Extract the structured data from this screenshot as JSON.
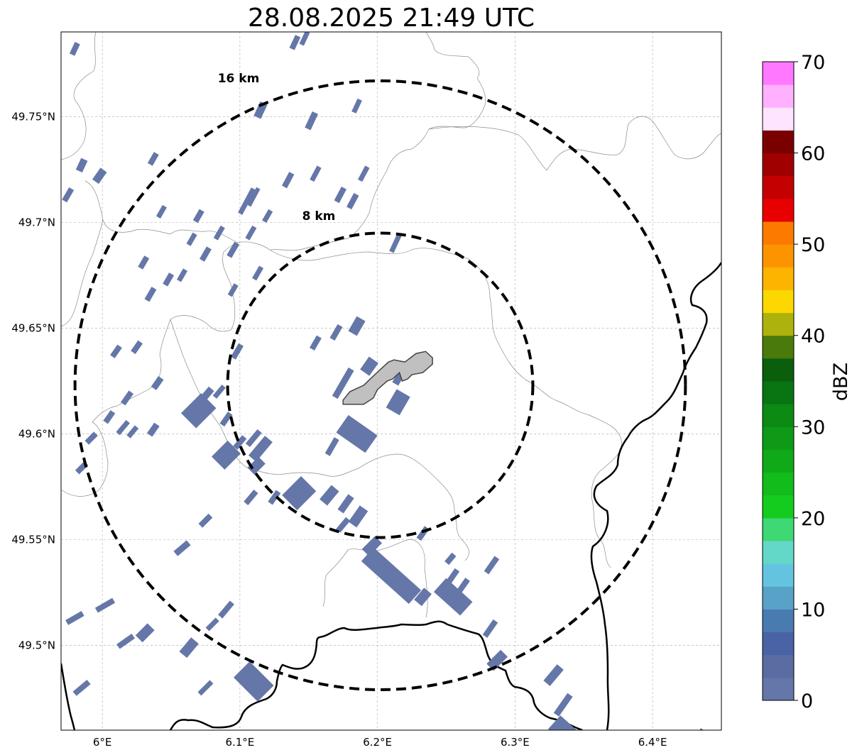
{
  "title": "28.08.2025 21:49 UTC",
  "map": {
    "lon_range": [
      5.97,
      6.45
    ],
    "lat_range": [
      49.46,
      49.79
    ],
    "x_ticks": [
      {
        "value": 6.0,
        "label": "6°E"
      },
      {
        "value": 6.1,
        "label": "6.1°E"
      },
      {
        "value": 6.2,
        "label": "6.2°E"
      },
      {
        "value": 6.3,
        "label": "6.3°E"
      },
      {
        "value": 6.4,
        "label": "6.4°E"
      }
    ],
    "y_ticks": [
      {
        "value": 49.5,
        "label": "49.5°N"
      },
      {
        "value": 49.55,
        "label": "49.55°N"
      },
      {
        "value": 49.6,
        "label": "49.6°N"
      },
      {
        "value": 49.65,
        "label": "49.65°N"
      },
      {
        "value": 49.7,
        "label": "49.7°N"
      },
      {
        "value": 49.75,
        "label": "49.75°N"
      }
    ],
    "gridlines": true,
    "center": {
      "lon": 6.202,
      "lat": 49.623
    },
    "rings": [
      {
        "radius_km": 8,
        "label": "8 km"
      },
      {
        "radius_km": 16,
        "label": "16 km"
      }
    ],
    "echo_color": "#6577a8",
    "echo_value_dbz": "0-5",
    "city_fill": "#c0c0c0"
  },
  "colorbar": {
    "label": "dBZ",
    "vmin": 0,
    "vmax": 70,
    "ticks": [
      0,
      10,
      20,
      30,
      40,
      50,
      60,
      70
    ],
    "colors": [
      "#6577a8",
      "#5a6ca2",
      "#4a63a6",
      "#4a7bb0",
      "#58a2c8",
      "#64c4e0",
      "#64d8c8",
      "#3ed874",
      "#14cc1e",
      "#12bc1a",
      "#10aa18",
      "#0e9a16",
      "#0c8a14",
      "#087412",
      "#0a5e0c",
      "#4a7a0c",
      "#aeb20c",
      "#fcd800",
      "#fcb400",
      "#fc9400",
      "#fc7a00",
      "#e80000",
      "#c40000",
      "#a00000",
      "#7a0000",
      "#ffe4ff",
      "#ffb0ff",
      "#ff78ff",
      "#f030f0"
    ]
  }
}
